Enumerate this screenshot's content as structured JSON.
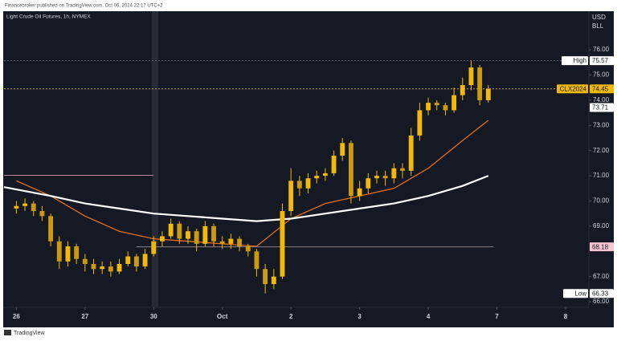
{
  "chart_data": {
    "type": "candlestick",
    "attribution": "Financebroker published on TradingView.com, Oct 06, 2024 22:17 UTC+2",
    "title": "Light Crude Oil Futures, 1h, NYMEX",
    "currency": [
      "USD",
      "BLL"
    ],
    "brand": "TradingView",
    "color": "#f0b90b",
    "x": [
      0,
      0.125,
      0.25,
      0.375,
      0.5,
      0.625,
      0.75,
      0.875,
      1,
      1.125,
      1.25,
      1.375,
      1.5,
      1.625,
      1.75,
      1.875,
      2,
      2.125,
      2.25,
      2.375,
      2.5,
      2.625,
      2.75,
      2.875,
      3,
      3.125,
      3.25,
      3.375,
      3.5,
      3.625,
      3.75,
      3.875,
      4,
      4.125,
      4.25,
      4.375,
      4.5,
      4.625,
      4.75,
      4.875,
      5,
      5.125,
      5.25,
      5.375,
      5.5,
      5.625,
      5.75,
      5.875,
      6,
      6.125,
      6.25,
      6.375,
      6.5,
      6.625,
      6.75,
      6.875
    ],
    "open": [
      69.7,
      69.8,
      69.9,
      69.6,
      69.4,
      68.4,
      67.6,
      68.2,
      67.7,
      67.5,
      67.3,
      67.4,
      67.2,
      67.5,
      67.8,
      67.4,
      67.9,
      68.4,
      68.6,
      69.1,
      68.5,
      68.8,
      68.3,
      69.0,
      68.4,
      68.3,
      68.5,
      68.2,
      68.0,
      67.3,
      66.7,
      67.0,
      69.6,
      70.8,
      70.5,
      70.9,
      71.0,
      71.1,
      71.8,
      72.3,
      70.2,
      70.5,
      70.9,
      71.0,
      70.9,
      71.3,
      71.2,
      72.6,
      73.6,
      73.9,
      73.8,
      73.6,
      74.2,
      74.6,
      75.3,
      74.0
    ],
    "high": [
      70.0,
      70.1,
      70.0,
      69.8,
      69.5,
      68.6,
      68.4,
      68.3,
      67.9,
      67.7,
      67.6,
      67.6,
      67.7,
      68.0,
      67.9,
      68.1,
      68.6,
      68.8,
      69.3,
      69.2,
      69.0,
      68.9,
      69.2,
      69.1,
      68.6,
      68.7,
      68.6,
      68.3,
      68.1,
      67.5,
      67.3,
      69.9,
      71.3,
      71.0,
      71.1,
      71.2,
      71.3,
      72.0,
      72.5,
      72.4,
      70.8,
      71.1,
      71.2,
      71.2,
      71.5,
      71.5,
      72.9,
      73.9,
      74.1,
      74.0,
      73.9,
      74.5,
      74.9,
      75.57,
      75.4,
      74.6
    ],
    "low": [
      69.5,
      69.6,
      69.4,
      69.2,
      68.2,
      67.3,
      67.4,
      67.5,
      67.2,
      67.1,
      67.1,
      67.0,
      67.1,
      67.4,
      67.2,
      67.3,
      67.8,
      68.2,
      68.5,
      68.3,
      68.3,
      68.0,
      68.2,
      68.2,
      68.1,
      68.1,
      68.0,
      67.8,
      67.0,
      66.33,
      66.5,
      66.9,
      69.4,
      70.2,
      70.3,
      70.7,
      70.8,
      71.0,
      71.6,
      69.9,
      70.0,
      70.3,
      70.7,
      70.6,
      70.7,
      70.9,
      71.0,
      72.4,
      73.4,
      73.6,
      73.4,
      73.5,
      74.0,
      74.4,
      73.8,
      73.9
    ],
    "close": [
      69.8,
      69.9,
      69.6,
      69.4,
      68.4,
      67.6,
      68.2,
      67.7,
      67.5,
      67.3,
      67.4,
      67.2,
      67.5,
      67.8,
      67.4,
      67.9,
      68.4,
      68.6,
      69.1,
      68.5,
      68.8,
      68.3,
      69.0,
      68.4,
      68.3,
      68.5,
      68.2,
      68.0,
      67.3,
      66.7,
      67.0,
      69.6,
      70.8,
      70.5,
      70.9,
      71.0,
      71.1,
      71.8,
      72.3,
      70.2,
      70.5,
      70.9,
      71.0,
      70.9,
      71.3,
      71.2,
      72.6,
      73.6,
      73.9,
      73.8,
      73.6,
      74.2,
      74.6,
      75.3,
      74.0,
      74.45
    ],
    "overlays": [
      {
        "color": "#e0701f",
        "x": [
          0,
          0.5,
          1,
          1.5,
          2,
          2.5,
          3,
          3.5,
          4,
          4.5,
          5,
          5.5,
          6,
          6.5,
          6.875
        ],
        "values": [
          70.8,
          70.2,
          69.4,
          68.8,
          68.5,
          68.4,
          68.3,
          68.2,
          69.3,
          69.9,
          70.2,
          70.5,
          71.3,
          72.4,
          73.2
        ]
      },
      {
        "color": "#ffffff",
        "x": [
          -0.18,
          0.5,
          1,
          1.5,
          2,
          2.5,
          3,
          3.5,
          4,
          4.5,
          5,
          5.5,
          6,
          6.5,
          6.875
        ],
        "values": [
          70.55,
          70.2,
          69.9,
          69.7,
          69.5,
          69.4,
          69.3,
          69.2,
          69.3,
          69.5,
          69.7,
          69.9,
          70.2,
          70.6,
          71.0
        ]
      }
    ],
    "hlines": [
      {
        "value": 71.02,
        "x": [
          -0.18,
          2.0
        ],
        "color": "#b48a9a"
      },
      {
        "value": 68.18,
        "x": [
          1.75,
          6.95
        ],
        "color": "#8a7f86"
      },
      {
        "value": 75.57,
        "x": [
          -0.18,
          8.34
        ],
        "color": "#5d6070",
        "dashed": true
      },
      {
        "value": 74.45,
        "x": [
          -0.18,
          8.34
        ],
        "color": "#c9a227",
        "dashed": true
      }
    ],
    "price_labels": [
      {
        "name": "High",
        "value": 75.57,
        "color": "#ffffff",
        "text_color": "#131722"
      },
      {
        "name": "CLX2024",
        "value": 74.45,
        "color": "#f0b90b",
        "text_color": "#131722"
      },
      {
        "value": 73.71,
        "color": "#ffffff",
        "text_color": "#131722"
      },
      {
        "value": 68.18,
        "color": "#f3c6cf",
        "text_color": "#131722"
      },
      {
        "name": "Low",
        "value": 66.33,
        "color": "#ffffff",
        "text_color": "#131722"
      }
    ],
    "xlim": [
      -0.18,
      8.34
    ],
    "xticks": [
      {
        "value": 0,
        "label": "26"
      },
      {
        "value": 1,
        "label": "27"
      },
      {
        "value": 2,
        "label": "30"
      },
      {
        "value": 3,
        "label": "Oct"
      },
      {
        "value": 4,
        "label": "2"
      },
      {
        "value": 5,
        "label": "3"
      },
      {
        "value": 6,
        "label": "4"
      },
      {
        "value": 7,
        "label": "7"
      },
      {
        "value": 8,
        "label": "8"
      }
    ],
    "ylim": [
      65.78,
      77.5
    ],
    "yticks": [
      {
        "value": 66,
        "label": "66.00"
      },
      {
        "value": 67,
        "label": "67.00"
      },
      {
        "value": 69,
        "label": "69.00"
      },
      {
        "value": 70,
        "label": "70.00"
      },
      {
        "value": 71,
        "label": "71.00"
      },
      {
        "value": 72,
        "label": "72.00"
      },
      {
        "value": 73,
        "label": "73.00"
      },
      {
        "value": 74,
        "label": "74.00"
      },
      {
        "value": 75,
        "label": "75.00"
      },
      {
        "value": 76,
        "label": "76.00"
      }
    ]
  }
}
